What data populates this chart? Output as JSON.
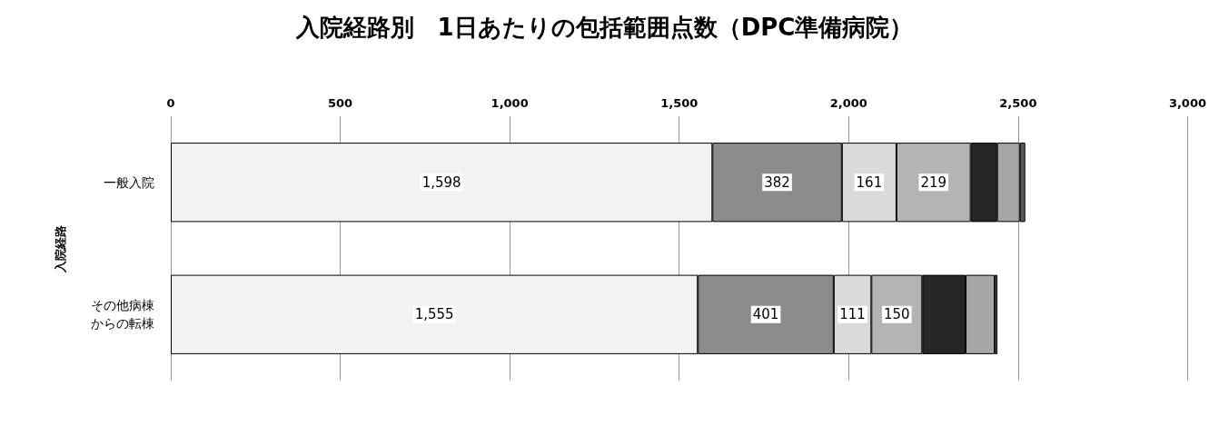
{
  "chart_data": {
    "type": "bar",
    "orientation": "horizontal",
    "stacked": true,
    "title": "入院経路別　1日あたりの包括範囲点数（DPC準備病院）",
    "ylabel": "入院経路",
    "categories": [
      "一般入院",
      "その他病棟からの転棟"
    ],
    "xlim": [
      0,
      3000
    ],
    "xticks": [
      0,
      500,
      {
        "value": 1000,
        "label": "1,000"
      },
      {
        "value": 1500,
        "label": "1,500"
      },
      {
        "value": 2000,
        "label": "2,000"
      },
      {
        "value": 2500,
        "label": "2,500"
      },
      {
        "value": 3000,
        "label": "3,000"
      }
    ],
    "grid": "x",
    "series": [
      {
        "color": "#f2f2f2",
        "values": [
          1598,
          1555
        ],
        "value_labels": [
          "1,598",
          "1,555"
        ]
      },
      {
        "color": "#8c8c8c",
        "values": [
          382,
          401
        ],
        "value_labels": [
          "382",
          "401"
        ]
      },
      {
        "color": "#dadada",
        "values": [
          161,
          111
        ],
        "value_labels": [
          "161",
          "111"
        ]
      },
      {
        "color": "#b4b4b4",
        "values": [
          219,
          150
        ],
        "value_labels": [
          "219",
          "150"
        ]
      },
      {
        "color": "#262626",
        "values": [
          78,
          128
        ]
      },
      {
        "color": "#a6a6a6",
        "values": [
          67,
          86
        ]
      },
      {
        "color": "#5a5a5a",
        "values": [
          16,
          8
        ]
      }
    ]
  }
}
